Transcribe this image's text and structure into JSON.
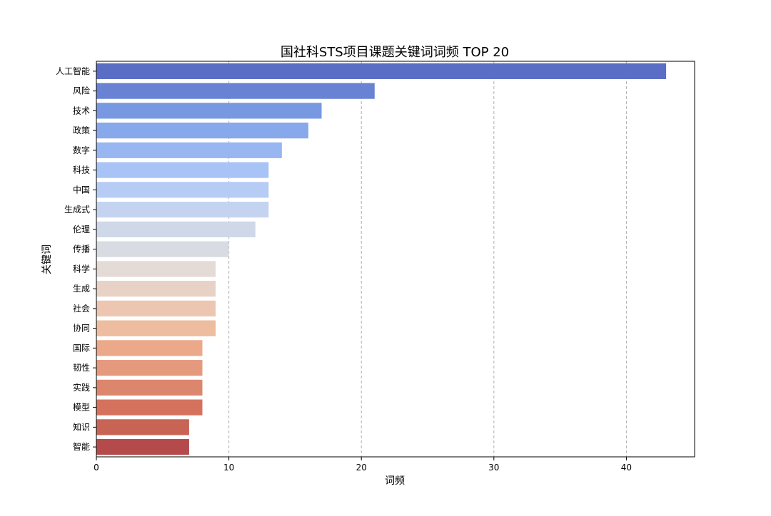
{
  "chart_data": {
    "type": "bar",
    "orientation": "horizontal",
    "title": "国社科STS项目课题关键词词频 TOP 20",
    "xlabel": "词频",
    "ylabel": "关键词",
    "xlim": [
      0,
      45.15
    ],
    "xticks": [
      0,
      10,
      20,
      30,
      40
    ],
    "grid": "x-dashed",
    "categories": [
      "人工智能",
      "风险",
      "技术",
      "政策",
      "数字",
      "科技",
      "中国",
      "生成式",
      "伦理",
      "传播",
      "科学",
      "生成",
      "社会",
      "协同",
      "国际",
      "韧性",
      "实践",
      "模型",
      "知识",
      "智能"
    ],
    "values": [
      43,
      21,
      17,
      16,
      14,
      13,
      13,
      13,
      12,
      10,
      9,
      9,
      9,
      9,
      8,
      8,
      8,
      8,
      7,
      7
    ],
    "colors": [
      "#5a6ec6",
      "#6882d4",
      "#7898e2",
      "#88a8ec",
      "#98b6f2",
      "#a8c4f6",
      "#b6ccf4",
      "#c4d4f0",
      "#cfd8e8",
      "#d8dbe2",
      "#e4dad6",
      "#e8d2c6",
      "#edc6b2",
      "#eebc9e",
      "#eba98a",
      "#e59a7e",
      "#dc866e",
      "#d4725e",
      "#c86454",
      "#b54a4a"
    ]
  }
}
